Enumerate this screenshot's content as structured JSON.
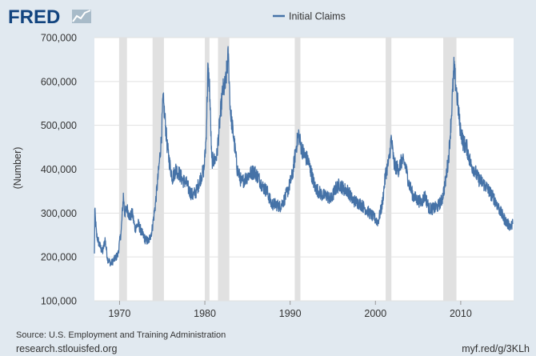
{
  "branding": {
    "logo_text": "FRED",
    "logo_icon": "line-chart-icon"
  },
  "chart_data": {
    "type": "line",
    "series": [
      {
        "name": "Initial Claims",
        "color": "#4572a7"
      }
    ],
    "ylabel": "(Number)",
    "xlim": [
      1967.05,
      2016.2
    ],
    "ylim": [
      100000,
      700000
    ],
    "yticks": [
      100000,
      200000,
      300000,
      400000,
      500000,
      600000,
      700000
    ],
    "ytick_labels": [
      "100,000",
      "200,000",
      "300,000",
      "400,000",
      "500,000",
      "600,000",
      "700,000"
    ],
    "xticks": [
      1970,
      1980,
      1990,
      2000,
      2010
    ],
    "xtick_labels": [
      "1970",
      "1980",
      "1990",
      "2000",
      "2010"
    ],
    "recessions": [
      [
        1969.95,
        1970.87
      ],
      [
        1973.87,
        1975.2
      ],
      [
        1980.0,
        1980.54
      ],
      [
        1981.54,
        1982.87
      ],
      [
        1990.54,
        1991.2
      ],
      [
        2001.2,
        2001.87
      ],
      [
        2007.95,
        2009.5
      ]
    ],
    "grid": true,
    "legend": "top-center",
    "points": [
      [
        1967.05,
        205000
      ],
      [
        1967.1,
        305000
      ],
      [
        1967.3,
        250000
      ],
      [
        1967.6,
        230000
      ],
      [
        1968.0,
        210000
      ],
      [
        1968.3,
        240000
      ],
      [
        1968.6,
        195000
      ],
      [
        1969.0,
        185000
      ],
      [
        1969.4,
        195000
      ],
      [
        1969.8,
        205000
      ],
      [
        1970.2,
        260000
      ],
      [
        1970.45,
        340000
      ],
      [
        1970.6,
        300000
      ],
      [
        1970.9,
        310000
      ],
      [
        1971.2,
        290000
      ],
      [
        1971.5,
        300000
      ],
      [
        1971.8,
        265000
      ],
      [
        1972.2,
        275000
      ],
      [
        1972.6,
        255000
      ],
      [
        1973.0,
        240000
      ],
      [
        1973.4,
        235000
      ],
      [
        1973.8,
        260000
      ],
      [
        1974.2,
        320000
      ],
      [
        1974.6,
        400000
      ],
      [
        1974.9,
        470000
      ],
      [
        1975.1,
        560000
      ],
      [
        1975.3,
        520000
      ],
      [
        1975.6,
        450000
      ],
      [
        1975.9,
        410000
      ],
      [
        1976.2,
        380000
      ],
      [
        1976.6,
        400000
      ],
      [
        1977.0,
        390000
      ],
      [
        1977.4,
        375000
      ],
      [
        1977.8,
        370000
      ],
      [
        1978.2,
        350000
      ],
      [
        1978.6,
        340000
      ],
      [
        1979.0,
        350000
      ],
      [
        1979.5,
        380000
      ],
      [
        1979.9,
        400000
      ],
      [
        1980.15,
        470000
      ],
      [
        1980.35,
        625000
      ],
      [
        1980.55,
        590000
      ],
      [
        1980.8,
        420000
      ],
      [
        1981.1,
        420000
      ],
      [
        1981.4,
        430000
      ],
      [
        1981.8,
        520000
      ],
      [
        1982.1,
        580000
      ],
      [
        1982.4,
        590000
      ],
      [
        1982.75,
        660000
      ],
      [
        1983.0,
        530000
      ],
      [
        1983.4,
        470000
      ],
      [
        1983.8,
        400000
      ],
      [
        1984.3,
        370000
      ],
      [
        1984.8,
        380000
      ],
      [
        1985.3,
        390000
      ],
      [
        1985.8,
        395000
      ],
      [
        1986.3,
        380000
      ],
      [
        1986.8,
        360000
      ],
      [
        1987.3,
        350000
      ],
      [
        1987.8,
        320000
      ],
      [
        1988.3,
        320000
      ],
      [
        1988.8,
        315000
      ],
      [
        1989.3,
        330000
      ],
      [
        1989.8,
        355000
      ],
      [
        1990.3,
        390000
      ],
      [
        1990.7,
        450000
      ],
      [
        1991.0,
        480000
      ],
      [
        1991.3,
        450000
      ],
      [
        1991.7,
        430000
      ],
      [
        1992.1,
        420000
      ],
      [
        1992.5,
        390000
      ],
      [
        1992.9,
        360000
      ],
      [
        1993.3,
        350000
      ],
      [
        1993.8,
        340000
      ],
      [
        1994.3,
        340000
      ],
      [
        1994.8,
        330000
      ],
      [
        1995.3,
        355000
      ],
      [
        1995.8,
        365000
      ],
      [
        1996.3,
        355000
      ],
      [
        1996.8,
        350000
      ],
      [
        1997.3,
        330000
      ],
      [
        1997.8,
        325000
      ],
      [
        1998.3,
        320000
      ],
      [
        1998.8,
        310000
      ],
      [
        1999.3,
        300000
      ],
      [
        1999.8,
        290000
      ],
      [
        2000.3,
        280000
      ],
      [
        2000.8,
        320000
      ],
      [
        2001.2,
        390000
      ],
      [
        2001.6,
        420000
      ],
      [
        2001.85,
        470000
      ],
      [
        2002.2,
        410000
      ],
      [
        2002.7,
        400000
      ],
      [
        2003.1,
        420000
      ],
      [
        2003.5,
        410000
      ],
      [
        2003.9,
        370000
      ],
      [
        2004.4,
        340000
      ],
      [
        2004.9,
        330000
      ],
      [
        2005.4,
        325000
      ],
      [
        2005.8,
        340000
      ],
      [
        2006.3,
        310000
      ],
      [
        2006.8,
        310000
      ],
      [
        2007.3,
        315000
      ],
      [
        2007.8,
        330000
      ],
      [
        2008.2,
        370000
      ],
      [
        2008.6,
        430000
      ],
      [
        2008.9,
        520000
      ],
      [
        2009.2,
        630000
      ],
      [
        2009.5,
        580000
      ],
      [
        2009.9,
        500000
      ],
      [
        2010.3,
        460000
      ],
      [
        2010.7,
        450000
      ],
      [
        2011.2,
        410000
      ],
      [
        2011.6,
        400000
      ],
      [
        2012.0,
        380000
      ],
      [
        2012.5,
        370000
      ],
      [
        2013.0,
        360000
      ],
      [
        2013.5,
        345000
      ],
      [
        2014.0,
        330000
      ],
      [
        2014.5,
        310000
      ],
      [
        2015.0,
        290000
      ],
      [
        2015.5,
        275000
      ],
      [
        2015.9,
        270000
      ],
      [
        2016.1,
        275000
      ]
    ]
  },
  "footer": {
    "source": "Source: U.S. Employment and Training Administration",
    "site": "research.stlouisfed.org",
    "short_link": "myf.red/g/3KLh"
  }
}
